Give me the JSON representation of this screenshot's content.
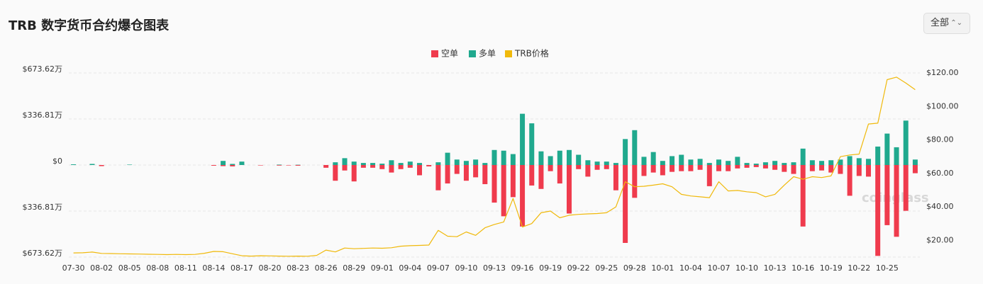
{
  "filter": "全部",
  "chart_data": {
    "type": "bar",
    "title": "TRB 数字货币合约爆仓图表",
    "watermark": "coinglass",
    "categories": [
      "07-30",
      null,
      null,
      "08-02",
      null,
      null,
      "08-05",
      null,
      null,
      "08-08",
      null,
      null,
      "08-11",
      null,
      null,
      "08-14",
      null,
      null,
      "08-17",
      null,
      null,
      "08-20",
      null,
      null,
      "08-23",
      null,
      null,
      "08-26",
      null,
      null,
      "08-29",
      null,
      null,
      "09-01",
      null,
      null,
      "09-04",
      null,
      null,
      "09-07",
      null,
      null,
      "09-10",
      null,
      null,
      "09-13",
      null,
      null,
      "09-16",
      null,
      null,
      "09-19",
      null,
      null,
      "09-22",
      null,
      null,
      "09-25",
      null,
      null,
      "09-28",
      null,
      null,
      "10-01",
      null,
      null,
      "10-04",
      null,
      null,
      "10-07",
      null,
      null,
      "10-10",
      null,
      null,
      "10-13",
      null,
      null,
      "10-16",
      null,
      null,
      "10-19",
      null,
      null,
      "10-22",
      null,
      null,
      "10-25",
      null,
      null,
      null
    ],
    "series": [
      {
        "name": "空单",
        "color": "#ef3b4d",
        "values": [
          0,
          0,
          0,
          -8,
          0,
          0,
          0,
          0,
          0,
          0,
          0,
          0,
          0,
          0,
          0,
          -5,
          -8,
          -10,
          0,
          0,
          -3,
          0,
          -4,
          -3,
          -5,
          0,
          0,
          -20,
          -115,
          -40,
          -120,
          -20,
          -20,
          -30,
          -55,
          -30,
          -20,
          -75,
          -10,
          -185,
          -135,
          -65,
          -115,
          -90,
          -140,
          -275,
          -375,
          -235,
          -450,
          -150,
          -175,
          -45,
          -135,
          -355,
          -30,
          -85,
          -35,
          -30,
          -185,
          -570,
          -240,
          -80,
          -55,
          -75,
          -50,
          -45,
          -45,
          -35,
          -155,
          -45,
          -45,
          -25,
          -20,
          -15,
          -25,
          -35,
          -50,
          -65,
          -450,
          -45,
          -40,
          -55,
          -65,
          -225,
          -80,
          -85,
          -665,
          -440,
          -525,
          -335,
          -60
        ]
      },
      {
        "name": "多单",
        "color": "#20a98e",
        "values": [
          5,
          0,
          8,
          0,
          0,
          0,
          3,
          0,
          0,
          0,
          0,
          0,
          0,
          0,
          0,
          0,
          30,
          8,
          25,
          0,
          0,
          0,
          3,
          0,
          2,
          0,
          0,
          0,
          20,
          50,
          25,
          15,
          15,
          10,
          35,
          15,
          25,
          15,
          0,
          20,
          90,
          40,
          30,
          40,
          15,
          110,
          105,
          80,
          375,
          305,
          100,
          65,
          105,
          110,
          75,
          35,
          25,
          25,
          15,
          190,
          255,
          60,
          95,
          30,
          65,
          75,
          40,
          45,
          15,
          40,
          30,
          60,
          15,
          10,
          20,
          30,
          15,
          20,
          120,
          35,
          30,
          35,
          40,
          65,
          50,
          45,
          135,
          230,
          130,
          325,
          40
        ]
      },
      {
        "name": "TRB价格",
        "color": "#f0b90b",
        "type": "line",
        "axis": "y2",
        "values": [
          12.5,
          12.6,
          13.0,
          12.2,
          12.1,
          12.0,
          11.9,
          11.8,
          11.7,
          11.6,
          11.5,
          11.6,
          11.5,
          11.6,
          12.3,
          13.4,
          13.2,
          12.0,
          10.8,
          10.6,
          10.8,
          10.7,
          10.6,
          10.5,
          10.6,
          10.5,
          11.0,
          14.2,
          13.1,
          15.4,
          15.0,
          15.2,
          15.4,
          15.3,
          15.6,
          16.5,
          16.8,
          17.0,
          17.2,
          26.0,
          22.5,
          22.2,
          25.0,
          23.0,
          27.5,
          29.5,
          31.0,
          45.0,
          28.0,
          30.0,
          36.5,
          37.5,
          33.5,
          35.0,
          35.5,
          35.8,
          36.0,
          36.5,
          40.0,
          55.0,
          52.0,
          52.3,
          53.0,
          53.8,
          52.0,
          47.5,
          46.5,
          46.0,
          45.5,
          55.0,
          49.5,
          49.8,
          49.0,
          48.5,
          46.0,
          47.5,
          53.0,
          58.0,
          56.5,
          58.0,
          57.5,
          58.5,
          70.0,
          71.0,
          71.5,
          89.5,
          90.0,
          116.0,
          117.5,
          114.0,
          110.0
        ]
      }
    ],
    "ylim": [
      -673.62,
      673.62
    ],
    "yticks": [
      {
        "value": 673.62,
        "label": "$673.62万"
      },
      {
        "value": 336.81,
        "label": "$336.81万"
      },
      {
        "value": 0,
        "label": "$0"
      },
      {
        "value": -336.81,
        "label": "$336.81万"
      },
      {
        "value": -673.62,
        "label": "$673.62万"
      }
    ],
    "y2lim": [
      10,
      120
    ],
    "y2ticks": [
      {
        "value": 20,
        "label": "$20.00"
      },
      {
        "value": 40,
        "label": "$40.00"
      },
      {
        "value": 60,
        "label": "$60.00"
      },
      {
        "value": 80,
        "label": "$80.00"
      },
      {
        "value": 100,
        "label": "$100.00"
      },
      {
        "value": 120,
        "label": "$120.00"
      }
    ],
    "grid": true
  }
}
